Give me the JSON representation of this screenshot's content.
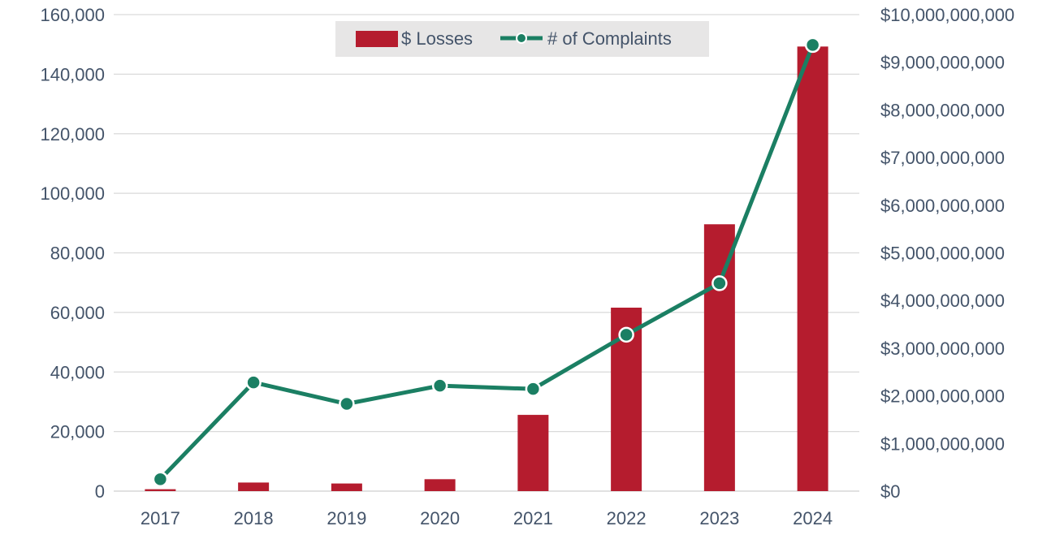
{
  "chart_data": {
    "type": "bar",
    "categories": [
      "2017",
      "2018",
      "2019",
      "2020",
      "2021",
      "2022",
      "2023",
      "2024"
    ],
    "series": [
      {
        "name": "$ Losses",
        "type": "bar",
        "axis": "right",
        "color": "#b51c2e",
        "values": [
          40000000,
          180000000,
          160000000,
          250000000,
          1600000000,
          3850000000,
          5600000000,
          9330000000
        ]
      },
      {
        "name": "# of Complaints",
        "type": "line",
        "axis": "left",
        "color": "#1b7f63",
        "values": [
          4000,
          36500,
          29300,
          35400,
          34300,
          52500,
          69800,
          149800
        ]
      }
    ],
    "left_axis": {
      "ylim": [
        0,
        160000
      ],
      "tick_labels": [
        "0",
        "20,000",
        "40,000",
        "60,000",
        "80,000",
        "100,000",
        "120,000",
        "140,000",
        "160,000"
      ]
    },
    "right_axis": {
      "ylim": [
        0,
        10000000000
      ],
      "tick_labels": [
        "$0",
        "$1,000,000,000",
        "$2,000,000,000",
        "$3,000,000,000",
        "$4,000,000,000",
        "$5,000,000,000",
        "$6,000,000,000",
        "$7,000,000,000",
        "$8,000,000,000",
        "$9,000,000,000",
        "$10,000,000,000"
      ]
    },
    "legend": {
      "placement": "top-center",
      "items": [
        "$ Losses",
        "# of Complaints"
      ]
    },
    "grid": true,
    "title": "",
    "xlabel": "",
    "ylabel": ""
  }
}
